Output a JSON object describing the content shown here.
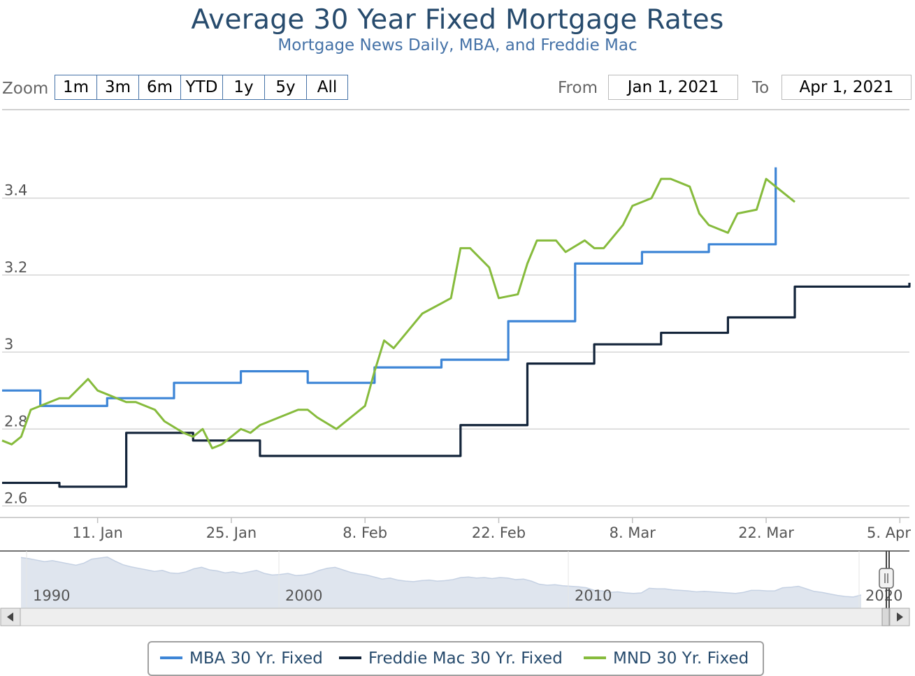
{
  "title": "Average 30 Year Fixed Mortgage Rates",
  "subtitle": "Mortgage News Daily, MBA, and Freddie Mac",
  "zoom": {
    "label": "Zoom",
    "buttons": [
      "1m",
      "3m",
      "6m",
      "YTD",
      "1y",
      "5y",
      "All"
    ]
  },
  "range": {
    "from_label": "From",
    "from_value": "Jan 1, 2021",
    "to_label": "To",
    "to_value": "Apr 1, 2021"
  },
  "colors": {
    "mba": "#3d85d6",
    "freddie": "#13243a",
    "mnd": "#86bb3c",
    "grid": "#c0c0c0",
    "axis_text": "#555555",
    "navigator_fill": "#dfe5ee",
    "navigator_line": "#c5d1e3"
  },
  "chart_data": {
    "type": "line",
    "title": "Average 30 Year Fixed Mortgage Rates",
    "subtitle": "Mortgage News Daily, MBA, and Freddie Mac",
    "xlabel": "",
    "ylabel": "",
    "x_range": [
      "2021-01-01",
      "2021-04-06"
    ],
    "ylim": [
      2.57,
      3.63
    ],
    "yticks": [
      2.6,
      2.8,
      3,
      3.2,
      3.4
    ],
    "ytick_labels": [
      "2.6",
      "2.8",
      "3",
      "3.2",
      "3.4"
    ],
    "xticks": [
      "2021-01-11",
      "2021-01-25",
      "2021-02-08",
      "2021-02-22",
      "2021-03-08",
      "2021-03-22",
      "2021-04-05"
    ],
    "xtick_labels": [
      "11. Jan",
      "25. Jan",
      "8. Feb",
      "22. Feb",
      "8. Mar",
      "22. Mar",
      "5. Apr"
    ],
    "grid": true,
    "legend": "bottom-center",
    "series": [
      {
        "name": "MBA 30 Yr. Fixed",
        "step": true,
        "points": [
          [
            "2021-01-01",
            2.9
          ],
          [
            "2021-01-05",
            2.86
          ],
          [
            "2021-01-12",
            2.88
          ],
          [
            "2021-01-19",
            2.92
          ],
          [
            "2021-01-26",
            2.95
          ],
          [
            "2021-02-02",
            2.92
          ],
          [
            "2021-02-09",
            2.96
          ],
          [
            "2021-02-16",
            2.98
          ],
          [
            "2021-02-23",
            3.08
          ],
          [
            "2021-03-02",
            3.23
          ],
          [
            "2021-03-09",
            3.26
          ],
          [
            "2021-03-16",
            3.28
          ],
          [
            "2021-03-23",
            3.28
          ],
          [
            "2021-03-23",
            3.48
          ]
        ]
      },
      {
        "name": "Freddie Mac 30 Yr. Fixed",
        "step": true,
        "points": [
          [
            "2021-01-01",
            2.66
          ],
          [
            "2021-01-07",
            2.65
          ],
          [
            "2021-01-14",
            2.79
          ],
          [
            "2021-01-21",
            2.77
          ],
          [
            "2021-01-28",
            2.73
          ],
          [
            "2021-02-04",
            2.73
          ],
          [
            "2021-02-11",
            2.73
          ],
          [
            "2021-02-18",
            2.81
          ],
          [
            "2021-02-25",
            2.97
          ],
          [
            "2021-03-04",
            3.02
          ],
          [
            "2021-03-11",
            3.05
          ],
          [
            "2021-03-18",
            3.09
          ],
          [
            "2021-03-25",
            3.17
          ],
          [
            "2021-04-01",
            3.17
          ],
          [
            "2021-04-06",
            3.17
          ],
          [
            "2021-04-06",
            3.18
          ]
        ]
      },
      {
        "name": "MND 30 Yr. Fixed",
        "step": false,
        "points": [
          [
            "2021-01-01",
            2.77
          ],
          [
            "2021-01-02",
            2.76
          ],
          [
            "2021-01-03",
            2.78
          ],
          [
            "2021-01-04",
            2.85
          ],
          [
            "2021-01-05",
            2.86
          ],
          [
            "2021-01-06",
            2.87
          ],
          [
            "2021-01-07",
            2.88
          ],
          [
            "2021-01-08",
            2.88
          ],
          [
            "2021-01-10",
            2.93
          ],
          [
            "2021-01-11",
            2.9
          ],
          [
            "2021-01-12",
            2.89
          ],
          [
            "2021-01-13",
            2.88
          ],
          [
            "2021-01-14",
            2.87
          ],
          [
            "2021-01-15",
            2.87
          ],
          [
            "2021-01-17",
            2.85
          ],
          [
            "2021-01-18",
            2.82
          ],
          [
            "2021-01-20",
            2.79
          ],
          [
            "2021-01-21",
            2.78
          ],
          [
            "2021-01-22",
            2.8
          ],
          [
            "2021-01-23",
            2.75
          ],
          [
            "2021-01-24",
            2.76
          ],
          [
            "2021-01-26",
            2.8
          ],
          [
            "2021-01-27",
            2.79
          ],
          [
            "2021-01-28",
            2.81
          ],
          [
            "2021-01-29",
            2.82
          ],
          [
            "2021-01-31",
            2.84
          ],
          [
            "2021-02-01",
            2.85
          ],
          [
            "2021-02-02",
            2.85
          ],
          [
            "2021-02-03",
            2.83
          ],
          [
            "2021-02-05",
            2.8
          ],
          [
            "2021-02-08",
            2.86
          ],
          [
            "2021-02-09",
            2.95
          ],
          [
            "2021-02-10",
            3.03
          ],
          [
            "2021-02-11",
            3.01
          ],
          [
            "2021-02-12",
            3.04
          ],
          [
            "2021-02-14",
            3.1
          ],
          [
            "2021-02-17",
            3.14
          ],
          [
            "2021-02-18",
            3.27
          ],
          [
            "2021-02-19",
            3.27
          ],
          [
            "2021-02-21",
            3.22
          ],
          [
            "2021-02-22",
            3.14
          ],
          [
            "2021-02-24",
            3.15
          ],
          [
            "2021-02-25",
            3.23
          ],
          [
            "2021-02-26",
            3.29
          ],
          [
            "2021-02-28",
            3.29
          ],
          [
            "2021-03-01",
            3.26
          ],
          [
            "2021-03-03",
            3.29
          ],
          [
            "2021-03-04",
            3.27
          ],
          [
            "2021-03-05",
            3.27
          ],
          [
            "2021-03-07",
            3.33
          ],
          [
            "2021-03-08",
            3.38
          ],
          [
            "2021-03-10",
            3.4
          ],
          [
            "2021-03-11",
            3.45
          ],
          [
            "2021-03-12",
            3.45
          ],
          [
            "2021-03-14",
            3.43
          ],
          [
            "2021-03-15",
            3.36
          ],
          [
            "2021-03-16",
            3.33
          ],
          [
            "2021-03-18",
            3.31
          ],
          [
            "2021-03-19",
            3.36
          ],
          [
            "2021-03-21",
            3.37
          ],
          [
            "2021-03-22",
            3.45
          ],
          [
            "2021-03-24",
            3.41
          ],
          [
            "2021-03-25",
            3.39
          ]
        ]
      }
    ]
  },
  "navigator": {
    "tick_labels": [
      "1990",
      "2000",
      "2010",
      "2020"
    ],
    "values": [
      10.4,
      10.2,
      9.9,
      9.6,
      9.8,
      9.5,
      9.2,
      8.9,
      9.3,
      10.1,
      10.3,
      10.5,
      9.7,
      9.0,
      8.6,
      8.3,
      8.0,
      7.7,
      7.9,
      7.4,
      7.3,
      7.6,
      8.2,
      8.5,
      8.0,
      7.8,
      7.4,
      7.6,
      7.3,
      7.6,
      7.9,
      7.3,
      7.0,
      7.1,
      7.3,
      6.9,
      7.0,
      7.3,
      7.9,
      8.3,
      8.5,
      8.0,
      7.5,
      7.2,
      7.0,
      6.6,
      6.2,
      6.4,
      6.0,
      5.8,
      5.7,
      5.9,
      6.0,
      5.8,
      5.9,
      6.1,
      6.5,
      6.6,
      6.4,
      6.5,
      6.3,
      6.5,
      6.4,
      6.1,
      6.2,
      5.8,
      5.2,
      5.0,
      5.1,
      4.9,
      4.8,
      4.7,
      4.5,
      4.0,
      3.9,
      3.6,
      3.7,
      3.5,
      3.4,
      3.5,
      4.4,
      4.3,
      4.3,
      4.1,
      4.0,
      3.9,
      3.7,
      3.8,
      3.7,
      3.6,
      3.5,
      3.4,
      3.6,
      4.0,
      4.0,
      3.9,
      3.9,
      4.5,
      4.6,
      4.8,
      4.3,
      3.8,
      3.6,
      3.3,
      3.0,
      2.8,
      2.7,
      3.1
    ]
  },
  "legend": {
    "items": [
      "MBA 30 Yr. Fixed",
      "Freddie Mac 30 Yr. Fixed",
      "MND 30 Yr. Fixed"
    ]
  }
}
